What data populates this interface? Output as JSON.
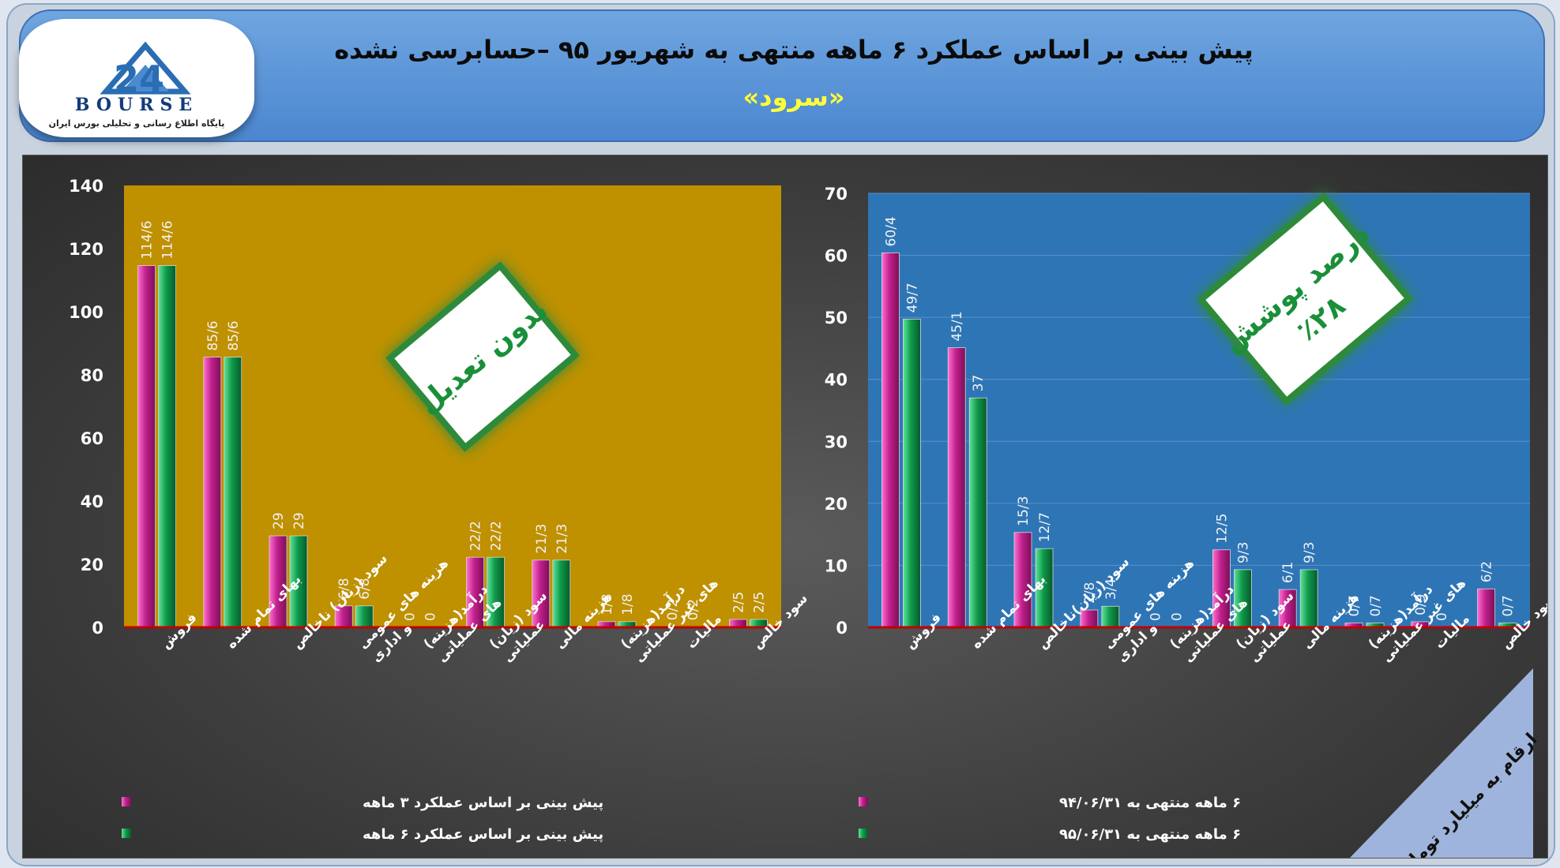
{
  "header": {
    "title": "پیش بینی بر اساس عملکرد ۶ ماهه منتهی به شهریور ۹۵ –حسابرسی نشده",
    "company": "«سرود»"
  },
  "logo": {
    "brand": "BOURSE",
    "number": "24",
    "subtitle": "پایگاه اطلاع رسانی و تحلیلی بورس ایران"
  },
  "badges": {
    "left": "بدون تعدیل",
    "right_line1": "درصد پوشش",
    "right_line2": "٪۲۸"
  },
  "corner_note": "ارقام به میلیارد تومان",
  "colors": {
    "series_a": "#c0208c",
    "series_b": "#0e9a4a",
    "left_plot_bg": "#bf9000",
    "right_plot_bg": "#2e75b6",
    "baseline": "#c00000"
  },
  "chart_data": [
    {
      "type": "bar",
      "plot_background": "gold",
      "categories": [
        "فروش",
        "بهای تمام شده",
        "سود (زیان) ناخالص",
        "هزینه های عمومی و اداری",
        "درآمد(هزینه)های عملیاتی",
        "سود (زیان) عملیاتی",
        "هزینه مالی",
        "درآمد(هزینه)های غیر عملیاتی",
        "مالیات",
        "سود خالص"
      ],
      "category_lines": [
        [
          "فروش"
        ],
        [
          "بهای تمام شده"
        ],
        [
          "سود (زیان) ناخالص"
        ],
        [
          "هزینه های عمومی",
          "و اداری"
        ],
        [
          "درآمد(هزینه)",
          "های عملیاتی"
        ],
        [
          "سود (زیان)",
          "عملیاتی"
        ],
        [
          "هزینه مالی"
        ],
        [
          "درآمد(هزینه)",
          "های غیر عملیاتی"
        ],
        [
          "مالیات"
        ],
        [
          "سود خالص"
        ]
      ],
      "series": [
        {
          "name": "پیش بینی بر اساس عملکرد ۳ ماهه",
          "values": [
            114.6,
            85.6,
            29,
            6.8,
            0,
            22.2,
            21.3,
            1.8,
            0.2,
            2.5
          ],
          "labels": [
            "114/6",
            "85/6",
            "29",
            "6/8",
            "0",
            "22/2",
            "21/3",
            "1/8",
            "0/2",
            "2/5"
          ]
        },
        {
          "name": "پیش بینی بر اساس عملکرد ۶ ماهه",
          "values": [
            114.6,
            85.6,
            29,
            6.8,
            0,
            22.2,
            21.3,
            1.8,
            0.2,
            2.5
          ],
          "labels": [
            "114/6",
            "85/6",
            "29",
            "6/8",
            "0",
            "22/2",
            "21/3",
            "1/8",
            "0/2",
            "2/5"
          ]
        }
      ],
      "yticks": [
        "0",
        "20",
        "40",
        "60",
        "80",
        "100",
        "120",
        "140"
      ],
      "ylim": [
        0,
        140
      ],
      "grid": false,
      "legend_position": "bottom-left"
    },
    {
      "type": "bar",
      "plot_background": "blue",
      "categories": [
        "فروش",
        "بهای تمام شده",
        "سود (زیان)ناخالص",
        "هزینه های عمومی و اداری",
        "درآمد(هزینه)های عملیاتی",
        "سود (زیان) عملیاتی",
        "هزینه مالی",
        "درآمد(هزینه)های غیر عملیاتی",
        "مالیات",
        "سود خالص"
      ],
      "category_lines": [
        [
          "فروش"
        ],
        [
          "بهای تمام شده"
        ],
        [
          "سود (زیان)ناخالص"
        ],
        [
          "هزینه های عمومی",
          "و اداری"
        ],
        [
          "درآمد(هزینه)",
          "های عملیاتی"
        ],
        [
          "سود (زیان)",
          "عملیاتی"
        ],
        [
          "هزینه مالی"
        ],
        [
          "درآمد(هزینه)",
          "های غیر عملیاتی"
        ],
        [
          "مالیات"
        ],
        [
          "سود خالص"
        ]
      ],
      "series": [
        {
          "name": "۶ ماهه منتهی به ۹۴/۰۶/۳۱",
          "values": [
            60.4,
            45.1,
            15.3,
            2.8,
            0,
            12.5,
            6.1,
            0.7,
            0.9,
            6.2
          ],
          "labels": [
            "60/4",
            "45/1",
            "15/3",
            "2/8",
            "0",
            "12/5",
            "6/1",
            "0/7",
            "0/9",
            "6/2"
          ]
        },
        {
          "name": "۶ ماهه منتهی به ۹۵/۰۶/۳۱",
          "values": [
            49.7,
            37,
            12.7,
            3.4,
            0,
            9.3,
            9.3,
            0.7,
            0,
            0.7
          ],
          "labels": [
            "49/7",
            "37",
            "12/7",
            "3/4",
            "0",
            "9/3",
            "9/3",
            "0/7",
            "0",
            "0/7"
          ]
        }
      ],
      "yticks": [
        "0",
        "10",
        "20",
        "30",
        "40",
        "50",
        "60",
        "70"
      ],
      "ylim": [
        0,
        70
      ],
      "grid": true,
      "legend_position": "bottom-left"
    }
  ]
}
